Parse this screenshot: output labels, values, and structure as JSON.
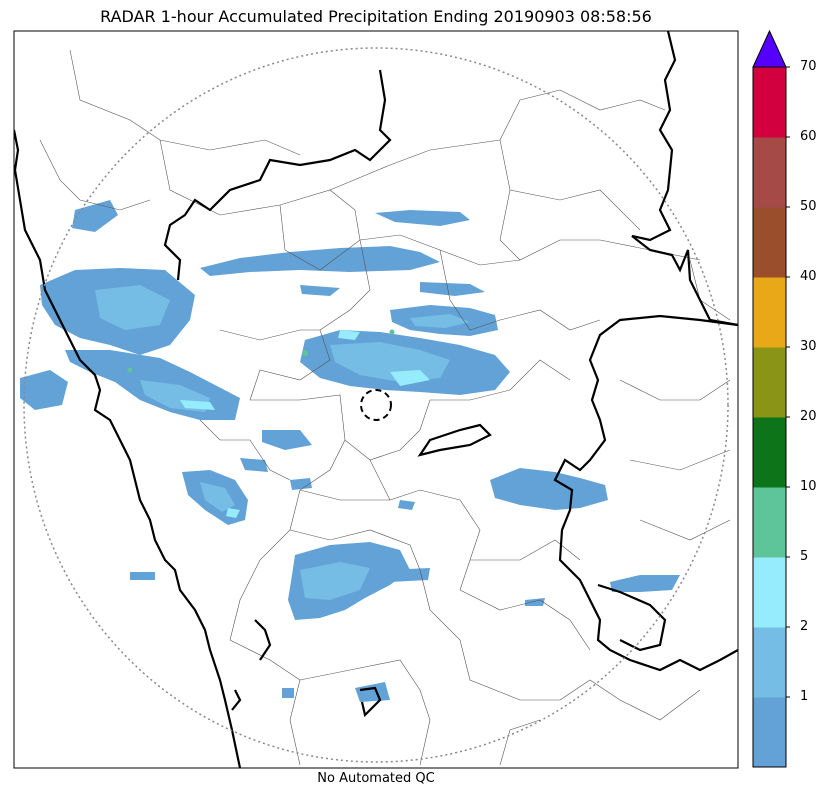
{
  "title": "RADAR 1-hour Accumulated Precipitation Ending 20190903 08:58:56",
  "footer": "No Automated QC",
  "colorbar": {
    "extend": "max",
    "extend_color": "#5500ff",
    "bins": [
      {
        "from": 0,
        "to": 1,
        "color": "#62a2d6"
      },
      {
        "from": 1,
        "to": 2,
        "color": "#76bde5"
      },
      {
        "from": 2,
        "to": 5,
        "color": "#96ecfc"
      },
      {
        "from": 5,
        "to": 10,
        "color": "#5ec59a"
      },
      {
        "from": 10,
        "to": 20,
        "color": "#0e7419"
      },
      {
        "from": 20,
        "to": 30,
        "color": "#8a9416"
      },
      {
        "from": 30,
        "to": 40,
        "color": "#e8a818"
      },
      {
        "from": 40,
        "to": 50,
        "color": "#9b4e2c"
      },
      {
        "from": 50,
        "to": 60,
        "color": "#a64a48"
      },
      {
        "from": 60,
        "to": 70,
        "color": "#d3003f"
      }
    ],
    "tick_labels": [
      "1",
      "2",
      "5",
      "10",
      "20",
      "30",
      "40",
      "50",
      "60",
      "70"
    ]
  },
  "range_ring": "dotted",
  "radar_site_marker": "dashed circle"
}
